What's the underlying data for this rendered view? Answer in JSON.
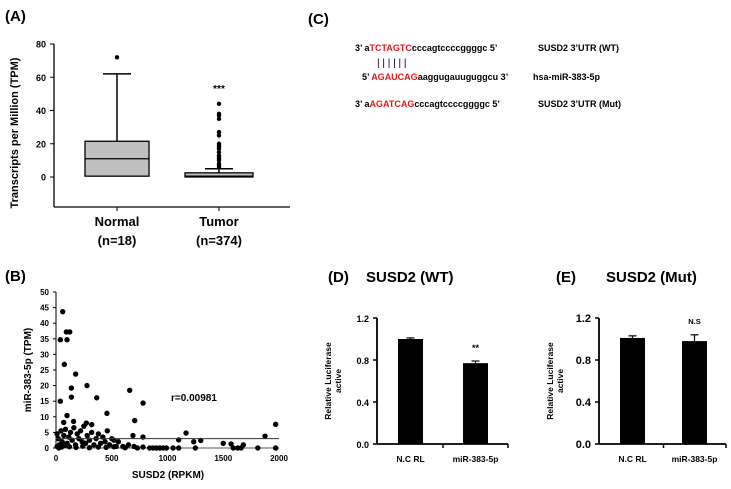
{
  "colors": {
    "box_fill": "#c0c0c0",
    "bar_fill": "#000000",
    "sequence_highlight": "#e0191f"
  },
  "chart_data": [
    {
      "panel": "(A)",
      "type": "box",
      "ylabel": "Transcripts per Million (TPM)",
      "ylim": [
        -20,
        80
      ],
      "yticks": [
        0,
        20,
        40,
        60,
        80
      ],
      "categories": [
        "Normal",
        "Tumor"
      ],
      "category_sublabels": [
        "(n=18)",
        "(n=374)"
      ],
      "boxes": [
        {
          "min": 0,
          "q1": 0.5,
          "median": 11,
          "q3": 21.5,
          "max": 62,
          "outliers": [
            72
          ]
        },
        {
          "min": 0,
          "q1": 0,
          "median": 0.5,
          "q3": 2.5,
          "max": 5,
          "outliers": [
            44,
            38,
            37,
            35,
            27,
            25,
            20,
            19,
            18,
            17,
            15,
            13,
            12,
            11,
            10,
            8,
            7,
            6
          ]
        }
      ],
      "annotations": [
        {
          "category": "Tumor",
          "text": "***"
        }
      ]
    },
    {
      "panel": "(B)",
      "type": "scatter",
      "xlabel": "SUSD2 (RPKM)",
      "ylabel": "miR-383-5p (TPM)",
      "xlim": [
        0,
        2000
      ],
      "ylim": [
        0,
        50
      ],
      "xticks": [
        0,
        500,
        1000,
        1500,
        2000
      ],
      "yticks": [
        0,
        5,
        10,
        15,
        20,
        25,
        30,
        35,
        40,
        45,
        50
      ],
      "annotation": "r=0.00981",
      "trendline_y": 3,
      "points": [
        [
          60,
          43.7
        ],
        [
          39,
          34.7
        ],
        [
          99,
          34.7
        ],
        [
          93,
          37.2
        ],
        [
          123,
          37.2
        ],
        [
          75,
          26.8
        ],
        [
          176,
          23.7
        ],
        [
          39,
          15
        ],
        [
          138,
          19.2
        ],
        [
          138,
          16.3
        ],
        [
          278,
          20
        ],
        [
          365,
          16.1
        ],
        [
          457,
          11.1
        ],
        [
          99,
          10.4
        ],
        [
          661,
          18.5
        ],
        [
          781,
          14.4
        ],
        [
          706,
          8.8
        ],
        [
          69,
          8.2
        ],
        [
          158,
          8.5
        ],
        [
          272,
          8
        ],
        [
          320,
          7.5
        ],
        [
          1166,
          4.8
        ],
        [
          1970,
          7.6
        ],
        [
          1875,
          3.8
        ],
        [
          1100,
          2.6
        ],
        [
          1235,
          2
        ],
        [
          1298,
          2.4
        ],
        [
          1500,
          1.5
        ],
        [
          1570,
          1.3
        ],
        [
          1680,
          1
        ],
        [
          10,
          4.5
        ],
        [
          20,
          3
        ],
        [
          30,
          1
        ],
        [
          45,
          5.5
        ],
        [
          55,
          2
        ],
        [
          70,
          4
        ],
        [
          85,
          6
        ],
        [
          100,
          1.5
        ],
        [
          115,
          3.5
        ],
        [
          130,
          5
        ],
        [
          145,
          2.5
        ],
        [
          160,
          6.5
        ],
        [
          175,
          1
        ],
        [
          190,
          4.5
        ],
        [
          205,
          3
        ],
        [
          220,
          5.5
        ],
        [
          235,
          2
        ],
        [
          250,
          7
        ],
        [
          265,
          1.5
        ],
        [
          280,
          4
        ],
        [
          300,
          2.5
        ],
        [
          320,
          5
        ],
        [
          340,
          1
        ],
        [
          360,
          3
        ],
        [
          380,
          4.5
        ],
        [
          400,
          1.5
        ],
        [
          420,
          3.5
        ],
        [
          440,
          2
        ],
        [
          460,
          5.5
        ],
        [
          480,
          1
        ],
        [
          500,
          3
        ],
        [
          520,
          2.5
        ],
        [
          540,
          0.5
        ],
        [
          560,
          2
        ],
        [
          600,
          0.5
        ],
        [
          650,
          1
        ],
        [
          690,
          4
        ],
        [
          700,
          0.5
        ],
        [
          780,
          3.5
        ],
        [
          780,
          0.3
        ],
        [
          10,
          0.5
        ],
        [
          25,
          0
        ],
        [
          50,
          0.3
        ],
        [
          80,
          0.8
        ],
        [
          120,
          0.4
        ],
        [
          180,
          0.2
        ],
        [
          240,
          0.6
        ],
        [
          300,
          0.1
        ],
        [
          380,
          0.3
        ],
        [
          450,
          0.2
        ],
        [
          520,
          0.4
        ],
        [
          620,
          0.1
        ],
        [
          730,
          0
        ],
        [
          840,
          0
        ],
        [
          870,
          0
        ],
        [
          900,
          0
        ],
        [
          930,
          0
        ],
        [
          960,
          0
        ],
        [
          990,
          0
        ],
        [
          1050,
          0
        ],
        [
          1100,
          0
        ],
        [
          1250,
          0
        ],
        [
          1590,
          0
        ],
        [
          1630,
          0
        ],
        [
          1660,
          0
        ],
        [
          1810,
          0
        ],
        [
          1970,
          0
        ]
      ]
    },
    {
      "panel": "(D)",
      "title": "SUSD2 (WT)",
      "type": "bar",
      "ylabel": [
        "Relative Luciferase",
        "active"
      ],
      "ylim": [
        0,
        1.2
      ],
      "yticks": [
        "0.0",
        "0.4",
        "0.8",
        "1.2"
      ],
      "categories": [
        "N.C RL",
        "miR-383-5p"
      ],
      "values": [
        1.0,
        0.77
      ],
      "errors": [
        0.01,
        0.02
      ],
      "annotations": [
        "",
        "**"
      ]
    },
    {
      "panel": "(E)",
      "title": "SUSD2 (Mut)",
      "type": "bar",
      "ylabel": [
        "Relative Luciferase",
        "active"
      ],
      "ylim": [
        0,
        1.2
      ],
      "yticks": [
        "0.0",
        "0.4",
        "0.8",
        "1.2"
      ],
      "categories": [
        "N.C RL",
        "miR-383-5p"
      ],
      "values": [
        1.01,
        0.98
      ],
      "errors": [
        0.02,
        0.06
      ],
      "annotations": [
        "",
        "N.S"
      ]
    }
  ],
  "panel_c": {
    "label": "(C)",
    "rows": [
      {
        "prefix": "3’ a",
        "highlight": "TCTAGTC",
        "suffix": "cccagtccccggggc 5’",
        "name": "SUSD2 3’UTR (WT)"
      },
      {
        "prefix": "5’ ",
        "highlight": "AGAUCAG",
        "suffix": "aaggugauuguggcu 3’",
        "name": "hsa-miR-383-5p"
      },
      {
        "prefix": "3’ a",
        "highlight": "AGATCAG",
        "suffix": "cccagtccccggggc 5’",
        "name": "SUSD2 3’UTR (Mut)"
      }
    ],
    "pairing": "| | | | | |"
  }
}
